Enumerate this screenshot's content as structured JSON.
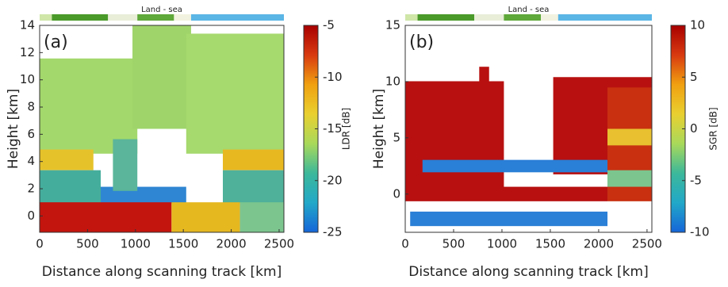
{
  "chart_data": [
    {
      "type": "heatmap",
      "panel_label": "(a)",
      "strip_label": "Land - sea",
      "xlabel": "Distance along scanning track [km]",
      "ylabel": "Height [km]",
      "xlim": [
        0,
        2550
      ],
      "xticks": [
        0,
        500,
        1000,
        1500,
        2000,
        2500
      ],
      "ylim": [
        -1.2,
        14
      ],
      "yticks": [
        0,
        2,
        4,
        6,
        8,
        10,
        12,
        14
      ],
      "colorbar": {
        "label": "LDR [dB]",
        "lim": [
          -25,
          -5
        ],
        "ticks": [
          -25,
          -20,
          -15,
          -10,
          -5
        ],
        "colormap": [
          "#1565d8",
          "#22a8c8",
          "#3cb89a",
          "#a9d95a",
          "#e9d030",
          "#f0a010",
          "#d83a10",
          "#a80000"
        ]
      }
    },
    {
      "type": "heatmap",
      "panel_label": "(b)",
      "strip_label": "Land - sea",
      "xlabel": "Distance along scanning track [km]",
      "ylabel": "Height [km]",
      "xlim": [
        0,
        2550
      ],
      "xticks": [
        0,
        500,
        1000,
        1500,
        2000,
        2500
      ],
      "ylim": [
        -3.4,
        15
      ],
      "yticks": [
        0,
        5,
        10,
        15
      ],
      "colorbar": {
        "label": "SGR [dB]",
        "lim": [
          -10,
          10
        ],
        "ticks": [
          -10,
          -5,
          0,
          5,
          10
        ],
        "colormap": [
          "#1565d8",
          "#22a8c8",
          "#3cb89a",
          "#a9d95a",
          "#e9d030",
          "#f0a010",
          "#d83a10",
          "#a80000"
        ]
      }
    }
  ]
}
